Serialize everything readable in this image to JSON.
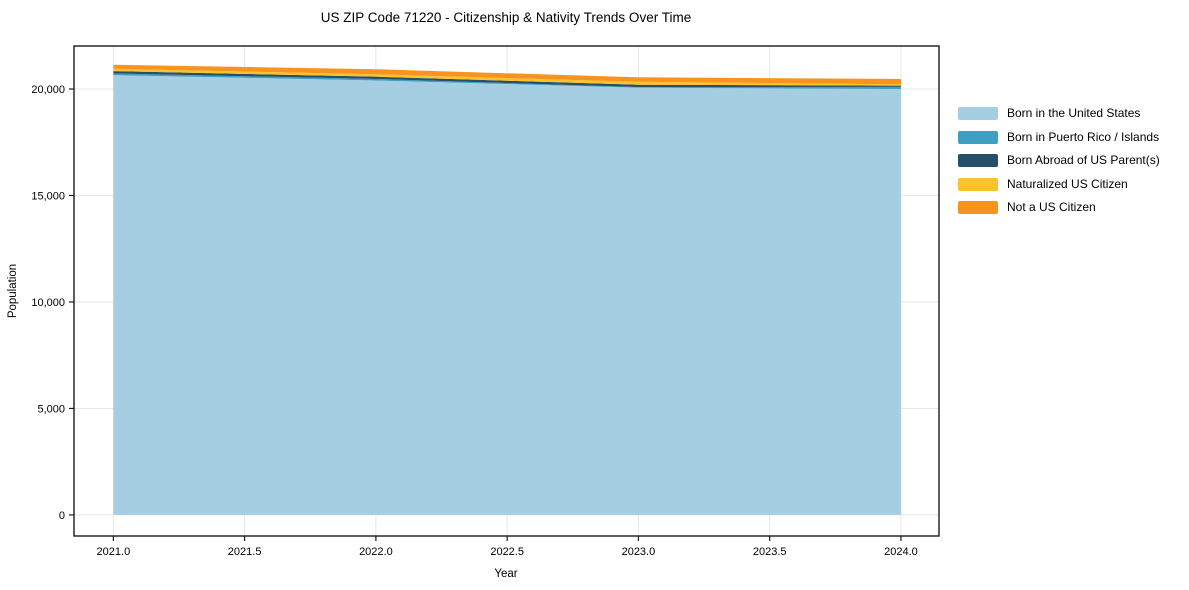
{
  "figure": {
    "background": "#ffffff",
    "axis_color": "#1a1a1a",
    "grid_color": "#e7e7e7"
  },
  "chart_data": {
    "type": "area",
    "stacked": true,
    "title": "US ZIP Code 71220 - Citizenship & Nativity Trends Over Time",
    "xlabel": "Year",
    "ylabel": "Population",
    "x": [
      2021,
      2022,
      2023,
      2024
    ],
    "series": [
      {
        "name": "Born in the United States",
        "color": "#a5cee3",
        "values": [
          20650,
          20400,
          20060,
          20000
        ]
      },
      {
        "name": "Born in Puerto Rico / Islands",
        "color": "#3d9fc1",
        "values": [
          80,
          70,
          30,
          100
        ]
      },
      {
        "name": "Born Abroad of US Parent(s)",
        "color": "#26506a",
        "values": [
          110,
          110,
          110,
          60
        ]
      },
      {
        "name": "Naturalized US Citizen",
        "color": "#fcc22e",
        "values": [
          110,
          110,
          140,
          60
        ]
      },
      {
        "name": "Not a US Citizen",
        "color": "#f7941f",
        "values": [
          190,
          240,
          210,
          250
        ]
      }
    ],
    "xticks": {
      "labels": [
        "2021.0",
        "2021.5",
        "2022.0",
        "2022.5",
        "2023.0",
        "2023.5",
        "2024.0"
      ],
      "values": [
        2021,
        2021.5,
        2022,
        2022.5,
        2023,
        2023.5,
        2024
      ]
    },
    "yticks": {
      "labels": [
        "0",
        "5,000",
        "10,000",
        "15,000",
        "20,000"
      ],
      "values": [
        0,
        5000,
        10000,
        15000,
        20000
      ]
    },
    "xlim": [
      2020.85,
      2024.145
    ],
    "ylim": [
      -990,
      22020
    ],
    "grid": true,
    "legend_position": "right"
  }
}
